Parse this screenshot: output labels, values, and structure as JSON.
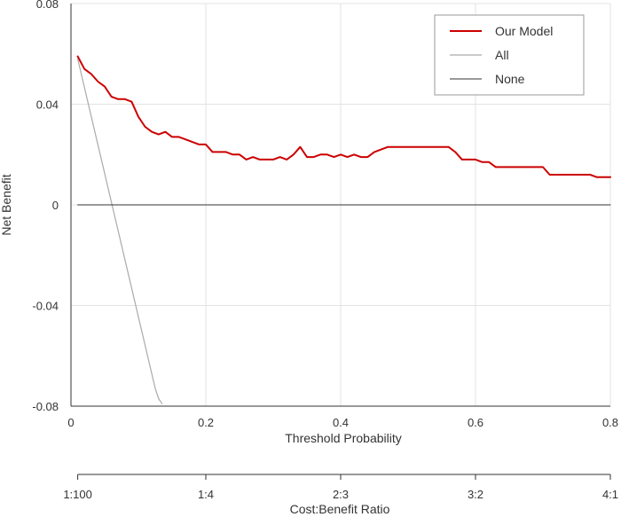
{
  "chart_data": {
    "type": "line",
    "xlabel": "Threshold Probability",
    "ylabel": "Net Benefit",
    "xlim": [
      0,
      0.8
    ],
    "ylim": [
      -0.08,
      0.08
    ],
    "x_ticks": [
      0,
      0.2,
      0.4,
      0.6,
      0.8
    ],
    "x_tick_labels": [
      "0",
      "0.2",
      "0.4",
      "0.6",
      "0.8"
    ],
    "y_ticks": [
      -0.08,
      -0.04,
      0,
      0.04,
      0.08
    ],
    "y_tick_labels": [
      "-0.08",
      "-0.04",
      "0",
      "0.04",
      "0.08"
    ],
    "grid": true,
    "legend_position": "top-right",
    "secondary_axis": {
      "label": "Cost:Benefit Ratio",
      "ticks": [
        0.01,
        0.2,
        0.4,
        0.6,
        0.8
      ],
      "tick_labels": [
        "1:100",
        "1:4",
        "2:3",
        "3:2",
        "4:1"
      ]
    },
    "series": [
      {
        "name": "Our Model",
        "color": "#cc0000",
        "x": [
          0.01,
          0.02,
          0.03,
          0.04,
          0.05,
          0.06,
          0.07,
          0.08,
          0.09,
          0.1,
          0.11,
          0.12,
          0.13,
          0.14,
          0.15,
          0.16,
          0.17,
          0.18,
          0.19,
          0.2,
          0.21,
          0.22,
          0.23,
          0.24,
          0.25,
          0.26,
          0.27,
          0.28,
          0.29,
          0.3,
          0.31,
          0.32,
          0.33,
          0.34,
          0.35,
          0.36,
          0.37,
          0.38,
          0.39,
          0.4,
          0.41,
          0.42,
          0.43,
          0.44,
          0.45,
          0.46,
          0.47,
          0.48,
          0.5,
          0.52,
          0.54,
          0.55,
          0.56,
          0.57,
          0.58,
          0.59,
          0.6,
          0.61,
          0.62,
          0.63,
          0.65,
          0.68,
          0.7,
          0.71,
          0.73,
          0.75,
          0.76,
          0.77,
          0.78,
          0.79,
          0.8
        ],
        "y": [
          0.059,
          0.054,
          0.052,
          0.049,
          0.047,
          0.043,
          0.042,
          0.042,
          0.041,
          0.035,
          0.031,
          0.029,
          0.028,
          0.029,
          0.027,
          0.027,
          0.026,
          0.025,
          0.024,
          0.024,
          0.021,
          0.021,
          0.021,
          0.02,
          0.02,
          0.018,
          0.019,
          0.018,
          0.018,
          0.018,
          0.019,
          0.018,
          0.02,
          0.023,
          0.019,
          0.019,
          0.02,
          0.02,
          0.019,
          0.02,
          0.019,
          0.02,
          0.019,
          0.019,
          0.021,
          0.022,
          0.023,
          0.023,
          0.023,
          0.023,
          0.023,
          0.023,
          0.023,
          0.021,
          0.018,
          0.018,
          0.018,
          0.017,
          0.017,
          0.015,
          0.015,
          0.015,
          0.015,
          0.012,
          0.012,
          0.012,
          0.012,
          0.012,
          0.011,
          0.011,
          0.011
        ]
      },
      {
        "name": "All",
        "color": "#aaaaaa",
        "x": [
          0.01,
          0.125,
          0.13,
          0.135
        ],
        "y": [
          0.058,
          -0.073,
          -0.077,
          -0.079
        ]
      },
      {
        "name": "None",
        "color": "#333333",
        "x": [
          0.01,
          0.8
        ],
        "y": [
          0,
          0
        ]
      }
    ]
  }
}
